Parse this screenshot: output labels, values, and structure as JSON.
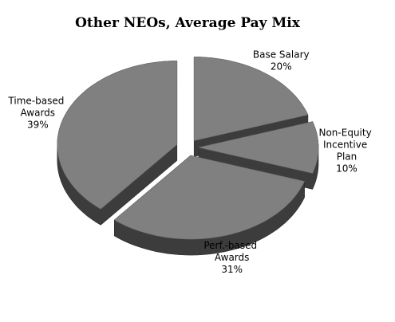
{
  "chart_data": {
    "type": "pie",
    "title": "Other NEOs, Average Pay Mix",
    "categories": [
      "Base Salary",
      "Non-Equity Incentive Plan",
      "Perf.-based Awards",
      "Time-based Awards"
    ],
    "values": [
      20,
      10,
      31,
      39
    ],
    "value_labels": [
      "20%",
      "10%",
      "31%",
      "39%"
    ],
    "color": "#808080"
  }
}
